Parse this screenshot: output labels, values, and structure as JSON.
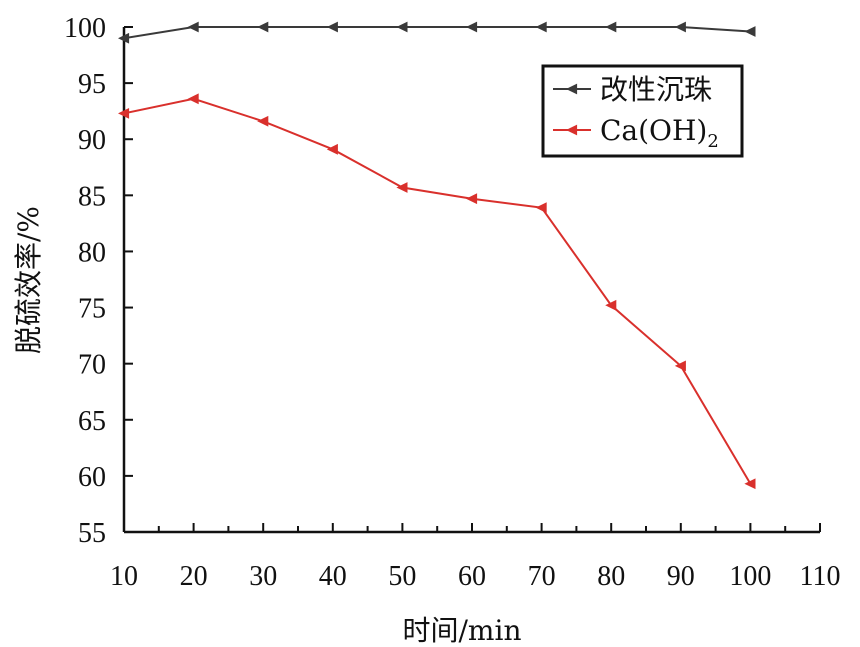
{
  "chart_data": {
    "type": "line",
    "title": "",
    "xlabel": "时间/min",
    "ylabel": "脱硫效率/%",
    "xlim": [
      10,
      110
    ],
    "ylim": [
      55,
      100
    ],
    "xticks": [
      10,
      20,
      30,
      40,
      50,
      60,
      70,
      80,
      90,
      100,
      110
    ],
    "yticks": [
      55,
      60,
      65,
      70,
      75,
      80,
      85,
      90,
      95,
      100
    ],
    "grid": false,
    "legend_position": "top-right",
    "series": [
      {
        "name": "改性沉珠",
        "color": "#3a3a3a",
        "marker": "left-triangle",
        "x": [
          10,
          20,
          30,
          40,
          50,
          60,
          70,
          80,
          90,
          100
        ],
        "y": [
          99.0,
          100.0,
          100.0,
          100.0,
          100.0,
          100.0,
          100.0,
          100.0,
          100.0,
          99.6
        ]
      },
      {
        "name": "Ca(OH)",
        "name_subscript": "2",
        "color": "#d9302c",
        "marker": "left-triangle",
        "x": [
          10,
          20,
          30,
          40,
          50,
          60,
          70,
          80,
          90,
          100
        ],
        "y": [
          92.3,
          93.6,
          91.6,
          89.1,
          85.7,
          84.7,
          83.9,
          75.2,
          69.8,
          59.3
        ]
      }
    ]
  }
}
